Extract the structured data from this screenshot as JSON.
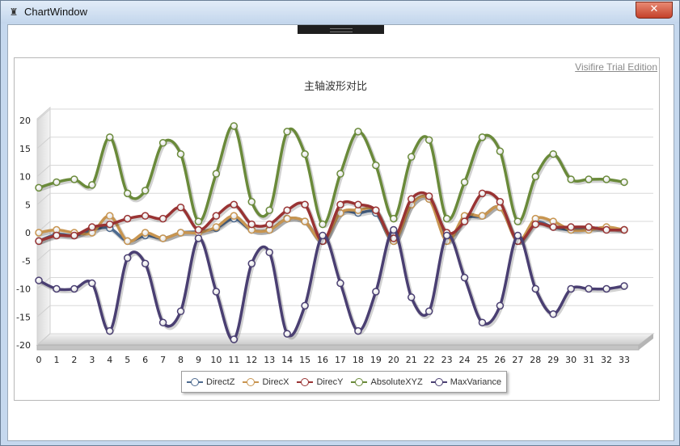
{
  "window": {
    "title": "ChartWindow",
    "icon": "app-icon",
    "close_label": "✕"
  },
  "watermark": "Visifire Trial Edition",
  "chart_data": {
    "type": "line",
    "title": "主轴波形对比",
    "x": [
      0,
      1,
      2,
      3,
      4,
      5,
      6,
      7,
      8,
      9,
      10,
      11,
      12,
      13,
      14,
      15,
      16,
      17,
      18,
      19,
      20,
      21,
      22,
      23,
      24,
      25,
      26,
      27,
      28,
      29,
      30,
      31,
      32,
      33
    ],
    "ylim": [
      -20,
      20
    ],
    "yticks": [
      -20,
      -15,
      -10,
      -5,
      0,
      5,
      10,
      15,
      20
    ],
    "grid": true,
    "legend_position": "bottom",
    "series": [
      {
        "name": "DirectZ",
        "color": "#4d6a8f",
        "values": [
          -1.5,
          -0.3,
          -0.5,
          0.5,
          0.8,
          -1.5,
          -0.5,
          -1,
          0,
          0.2,
          0.8,
          2.5,
          0.5,
          0.5,
          2.5,
          2,
          -1.5,
          3.5,
          3.5,
          3.5,
          -1.5,
          5,
          6,
          -1.2,
          2.5,
          3,
          4.5,
          -1.5,
          1.8,
          1,
          0.5,
          0.8,
          0.8,
          0.5
        ]
      },
      {
        "name": "DirecX",
        "color": "#c89550",
        "values": [
          0,
          0.5,
          0,
          0,
          3,
          -1.5,
          0,
          -1,
          0,
          0,
          1,
          3,
          0.5,
          0.5,
          2.5,
          2,
          -1.5,
          3.5,
          4,
          4,
          -1.5,
          5,
          6,
          -1.5,
          3,
          3,
          4.5,
          -1.5,
          2.5,
          2,
          0.5,
          0.5,
          1,
          0.5
        ]
      },
      {
        "name": "DirecY",
        "color": "#993333",
        "values": [
          -1.5,
          -0.5,
          -0.5,
          1,
          1.5,
          2.5,
          3,
          2.5,
          4.5,
          0.5,
          3,
          5,
          1.5,
          1.5,
          4,
          5,
          -1.5,
          5,
          5,
          4,
          -1,
          6,
          6.5,
          0,
          2,
          7,
          5.5,
          -1.5,
          1.5,
          1,
          1,
          1,
          0.5,
          0.5
        ]
      },
      {
        "name": "AbsoluteXYZ",
        "color": "#6a8a3a",
        "values": [
          8,
          9,
          9.5,
          8.5,
          17,
          7,
          7.5,
          16,
          14,
          2,
          10.5,
          19,
          5.5,
          4,
          18,
          14,
          1.5,
          10.5,
          18,
          12,
          2.5,
          13.5,
          16.5,
          2.5,
          9,
          17,
          14.5,
          2,
          10,
          14,
          9.5,
          9.5,
          9.5,
          9
        ]
      },
      {
        "name": "MaxVariance",
        "color": "#4a3f72",
        "values": [
          -8.5,
          -10,
          -10,
          -9,
          -17.5,
          -4.5,
          -5.5,
          -16,
          -14,
          -1,
          -10.5,
          -19,
          -5.5,
          -3.5,
          -18,
          -13,
          -0.5,
          -9,
          -17.5,
          -10.5,
          0.5,
          -11.5,
          -14,
          -0.5,
          -8,
          -16,
          -13,
          -0.5,
          -10,
          -14.5,
          -10,
          -10,
          -10,
          -9.5
        ]
      }
    ]
  }
}
